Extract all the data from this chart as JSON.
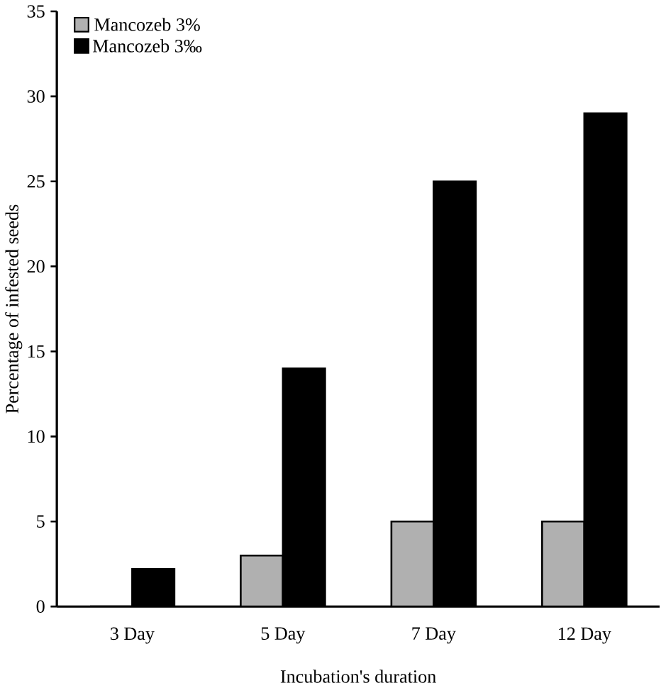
{
  "chart_data": {
    "type": "bar",
    "xlabel": "Incubation's duration",
    "ylabel": "Percentage of infested seeds",
    "categories": [
      "3 Day",
      "5 Day",
      "7 Day",
      "12 Day"
    ],
    "series": [
      {
        "name": "Mancozeb 3%",
        "color": "#b0b0b0",
        "values": [
          0,
          3,
          5,
          5
        ]
      },
      {
        "name": "Mancozeb 3‰",
        "color": "#000000",
        "values": [
          2.2,
          14,
          25,
          29
        ]
      }
    ],
    "ylim": [
      0,
      35
    ],
    "yticks": [
      0,
      5,
      10,
      15,
      20,
      25,
      30,
      35
    ],
    "legend": "top left",
    "grid": false
  }
}
